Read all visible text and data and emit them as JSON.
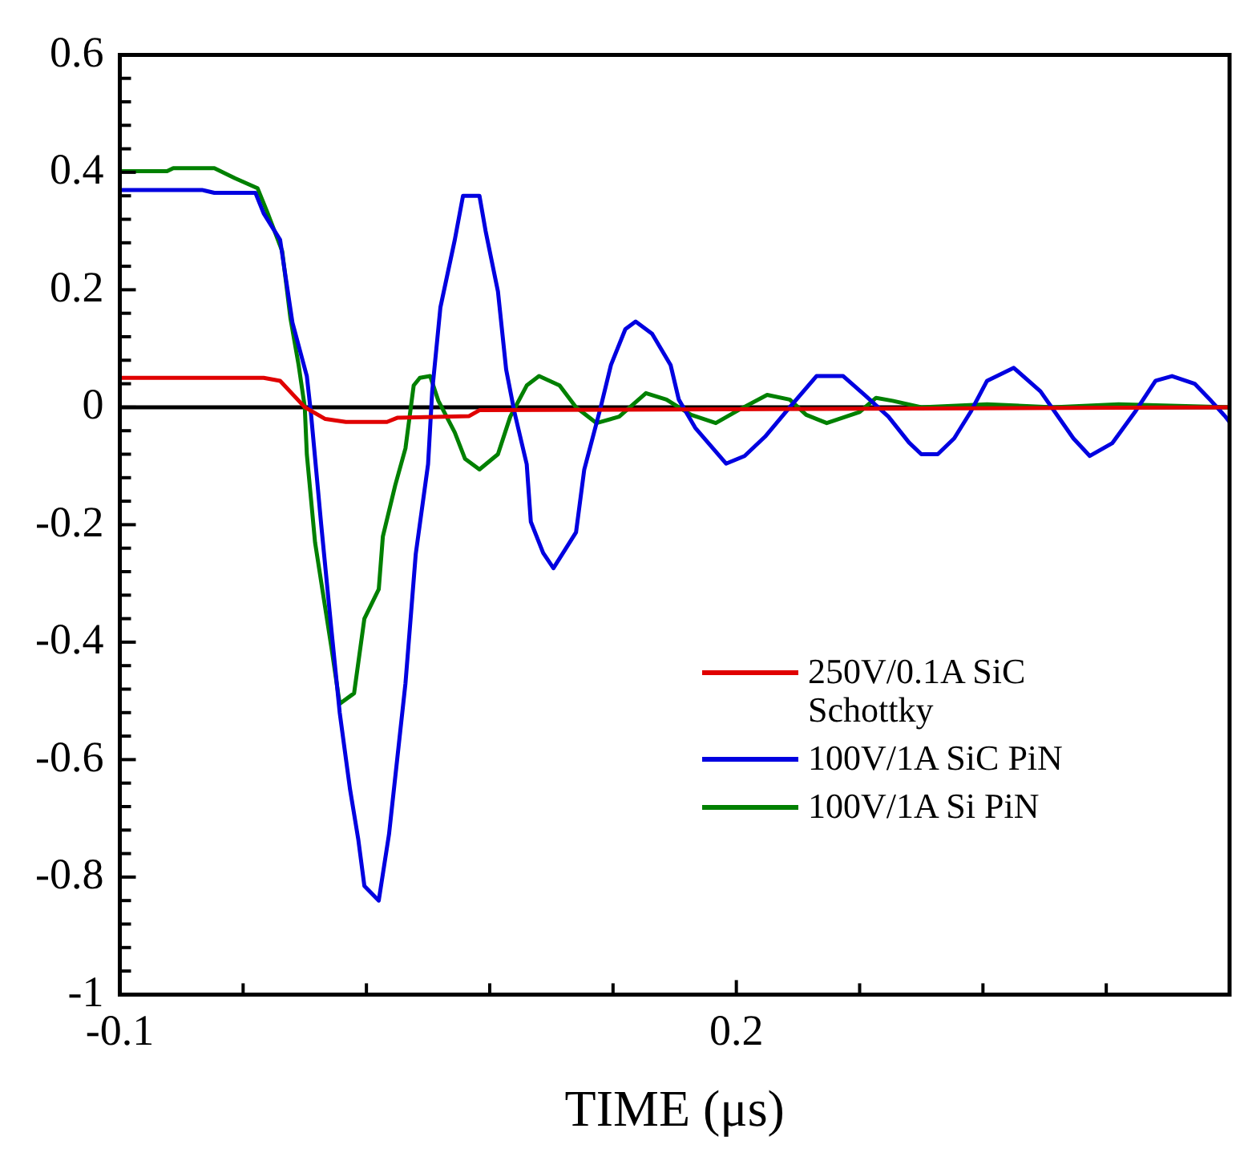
{
  "chart_data": {
    "type": "line",
    "xlabel": "TIME (μs)",
    "xlim": [
      -0.1,
      0.44
    ],
    "ylim": [
      -1,
      0.6
    ],
    "xticks": [
      -0.1,
      {
        "value": -0.04,
        "label": null
      },
      {
        "value": 0.02,
        "label": null
      },
      {
        "value": 0.08,
        "label": null
      },
      {
        "value": 0.14,
        "label": null
      },
      0.2,
      {
        "value": 0.26,
        "label": null
      },
      {
        "value": 0.32,
        "label": null
      },
      {
        "value": 0.38,
        "label": null
      }
    ],
    "yticks": [
      -1,
      {
        "value": -0.96,
        "label": null
      },
      {
        "value": -0.92,
        "label": null
      },
      {
        "value": -0.88,
        "label": null
      },
      {
        "value": -0.84,
        "label": null
      },
      -0.8,
      {
        "value": -0.76,
        "label": null
      },
      {
        "value": -0.72,
        "label": null
      },
      {
        "value": -0.68,
        "label": null
      },
      {
        "value": -0.64,
        "label": null
      },
      -0.6,
      {
        "value": -0.56,
        "label": null
      },
      {
        "value": -0.52,
        "label": null
      },
      {
        "value": -0.48,
        "label": null
      },
      {
        "value": -0.44,
        "label": null
      },
      -0.4,
      {
        "value": -0.36,
        "label": null
      },
      {
        "value": -0.32,
        "label": null
      },
      {
        "value": -0.28,
        "label": null
      },
      {
        "value": -0.24,
        "label": null
      },
      -0.2,
      {
        "value": -0.16,
        "label": null
      },
      {
        "value": -0.12,
        "label": null
      },
      {
        "value": -0.08,
        "label": null
      },
      {
        "value": -0.04,
        "label": null
      },
      0,
      {
        "value": 0.04,
        "label": null
      },
      {
        "value": 0.08,
        "label": null
      },
      {
        "value": 0.12,
        "label": null
      },
      {
        "value": 0.16,
        "label": null
      },
      0.2,
      {
        "value": 0.24,
        "label": null
      },
      {
        "value": 0.28,
        "label": null
      },
      {
        "value": 0.32,
        "label": null
      },
      {
        "value": 0.36,
        "label": null
      },
      0.4,
      {
        "value": 0.44,
        "label": null
      },
      {
        "value": 0.48,
        "label": null
      },
      {
        "value": 0.52,
        "label": null
      },
      {
        "value": 0.56,
        "label": null
      },
      0.6
    ],
    "ref_lines": [
      {
        "axis": "y",
        "value": 0,
        "color": "#000000"
      }
    ],
    "legend": "bottom right",
    "series": [
      {
        "name": "250V/0.1A SiC Schottky",
        "color": "#e00000",
        "x": [
          -0.1,
          -0.03,
          -0.022,
          -0.01,
          0.0,
          0.01,
          0.03,
          0.035,
          0.07,
          0.075,
          0.44
        ],
        "values": [
          0.05,
          0.05,
          0.045,
          0.0,
          -0.02,
          -0.025,
          -0.025,
          -0.018,
          -0.015,
          -0.005,
          0.0
        ]
      },
      {
        "name": "100V/1A SiC PiN",
        "color": "#0000e0",
        "x": [
          -0.1,
          -0.06,
          -0.054,
          -0.034,
          -0.03,
          -0.022,
          -0.016,
          -0.009,
          -0.007,
          -0.002,
          0.003,
          0.007,
          0.012,
          0.016,
          0.019,
          0.026,
          0.031,
          0.039,
          0.044,
          0.05,
          0.052,
          0.056,
          0.063,
          0.067,
          0.075,
          0.078,
          0.084,
          0.088,
          0.092,
          0.098,
          0.1,
          0.106,
          0.111,
          0.122,
          0.126,
          0.134,
          0.139,
          0.146,
          0.151,
          0.159,
          0.168,
          0.172,
          0.18,
          0.195,
          0.204,
          0.214,
          0.226,
          0.239,
          0.252,
          0.263,
          0.274,
          0.284,
          0.29,
          0.298,
          0.306,
          0.314,
          0.322,
          0.335,
          0.348,
          0.355,
          0.364,
          0.372,
          0.383,
          0.394,
          0.404,
          0.412,
          0.423,
          0.431,
          0.438,
          0.44
        ],
        "values": [
          0.37,
          0.37,
          0.365,
          0.365,
          0.33,
          0.285,
          0.144,
          0.053,
          -0.01,
          -0.2,
          -0.38,
          -0.52,
          -0.65,
          -0.735,
          -0.815,
          -0.84,
          -0.727,
          -0.47,
          -0.25,
          -0.097,
          0.027,
          0.17,
          0.285,
          0.36,
          0.36,
          0.3,
          0.197,
          0.064,
          -0.008,
          -0.097,
          -0.195,
          -0.248,
          -0.274,
          -0.213,
          -0.106,
          0.0,
          0.072,
          0.133,
          0.146,
          0.125,
          0.072,
          0.013,
          -0.035,
          -0.096,
          -0.083,
          -0.05,
          0.0,
          0.053,
          0.053,
          0.019,
          -0.016,
          -0.06,
          -0.08,
          -0.08,
          -0.053,
          -0.008,
          0.045,
          0.067,
          0.027,
          -0.008,
          -0.053,
          -0.083,
          -0.061,
          -0.008,
          0.045,
          0.053,
          0.04,
          0.011,
          -0.016,
          -0.025
        ]
      },
      {
        "name": "100V/1A Si PiN",
        "color": "#008000",
        "x": [
          -0.1,
          -0.077,
          -0.074,
          -0.054,
          -0.044,
          -0.033,
          -0.028,
          -0.021,
          -0.017,
          -0.013,
          -0.01,
          -0.009,
          -0.005,
          -0.001,
          0.003,
          0.007,
          0.014,
          0.019,
          0.026,
          0.028,
          0.034,
          0.039,
          0.043,
          0.046,
          0.051,
          0.055,
          0.063,
          0.068,
          0.075,
          0.084,
          0.09,
          0.098,
          0.104,
          0.114,
          0.122,
          0.132,
          0.143,
          0.156,
          0.166,
          0.178,
          0.19,
          0.202,
          0.215,
          0.226,
          0.234,
          0.244,
          0.26,
          0.268,
          0.276,
          0.29,
          0.322,
          0.354,
          0.386,
          0.439
        ],
        "values": [
          0.402,
          0.402,
          0.407,
          0.407,
          0.39,
          0.373,
          0.33,
          0.266,
          0.152,
          0.072,
          0.0,
          -0.08,
          -0.23,
          -0.32,
          -0.41,
          -0.505,
          -0.487,
          -0.36,
          -0.31,
          -0.22,
          -0.133,
          -0.07,
          0.037,
          0.05,
          0.053,
          0.011,
          -0.043,
          -0.088,
          -0.106,
          -0.08,
          -0.016,
          0.037,
          0.053,
          0.037,
          0.0,
          -0.027,
          -0.016,
          0.024,
          0.013,
          -0.013,
          -0.027,
          -0.003,
          0.021,
          0.013,
          -0.013,
          -0.027,
          -0.008,
          0.016,
          0.011,
          0.0,
          0.005,
          0.0,
          0.005,
          0.0
        ]
      }
    ]
  }
}
